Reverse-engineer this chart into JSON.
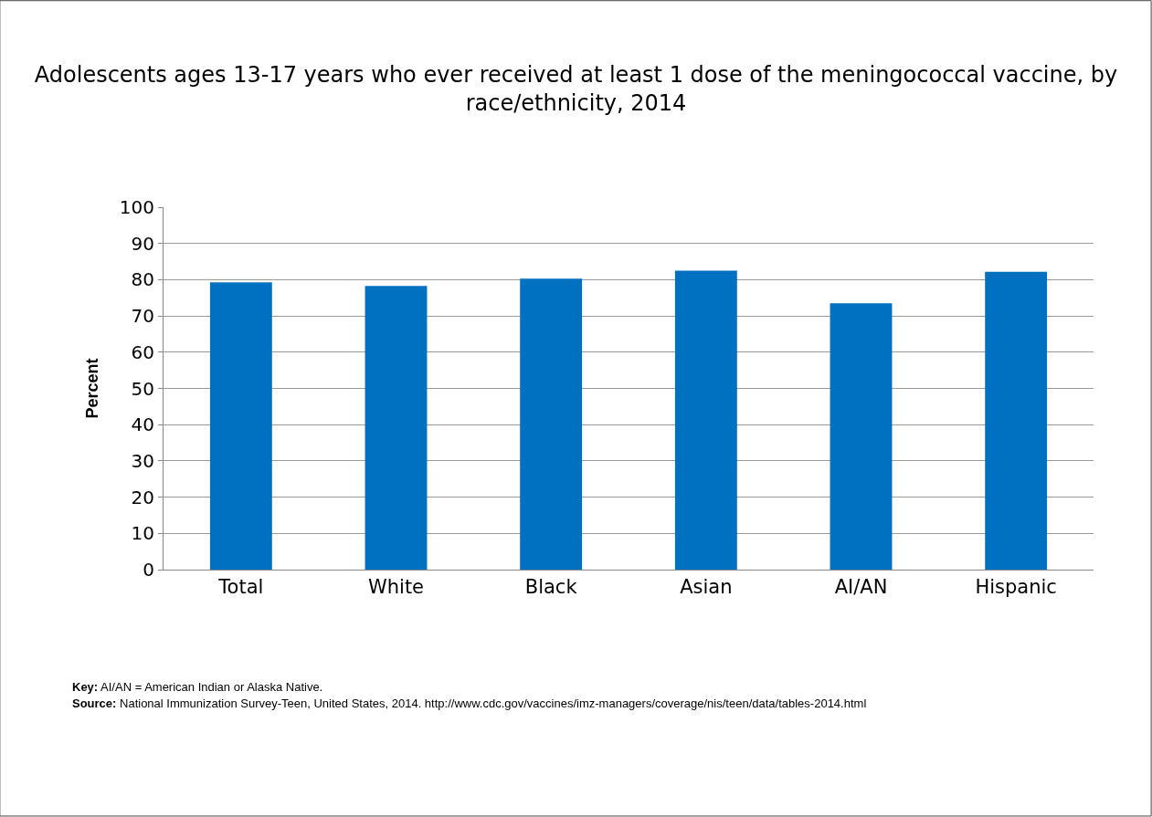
{
  "chart_data": {
    "type": "bar",
    "title": "Adolescents ages 13-17 years who ever received at least 1 dose of the meningococcal vaccine, by race/ethnicity, 2014",
    "ylabel": "Percent",
    "categories": [
      "Total",
      "White",
      "Black",
      "Asian",
      "AI/AN",
      "Hispanic"
    ],
    "values": [
      79.3,
      78.3,
      80.3,
      82.5,
      73.5,
      82.2
    ],
    "color": "#0070c0",
    "ylim": [
      0,
      100
    ],
    "yticks": [
      0,
      10,
      20,
      30,
      40,
      50,
      60,
      70,
      80,
      90,
      100
    ],
    "grid": "y",
    "legend": false,
    "annotations": [
      "Key: AI/AN = American Indian or Alaska Native.",
      "Source: National Immunization Survey-Teen, United States, 2014. http://www.cdc.gov/vaccines/imz-managers/coverage/nis/teen/data/tables-2014.html"
    ]
  }
}
